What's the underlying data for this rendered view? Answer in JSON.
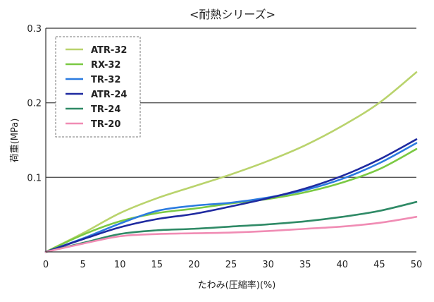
{
  "chart_data": {
    "type": "line",
    "title": "<耐熱シリーズ>",
    "xlabel": "たわみ(圧縮率)(%)",
    "ylabel": "荷重(MPa)",
    "xlim": [
      0,
      50
    ],
    "ylim": [
      0,
      0.3
    ],
    "xticks": [
      0,
      5,
      10,
      15,
      20,
      25,
      30,
      35,
      40,
      45,
      50
    ],
    "xtick_labels": [
      "0",
      "5",
      "10",
      "15",
      "20",
      "25",
      "30",
      "35",
      "40",
      "45",
      "50"
    ],
    "yticks": [
      0.1,
      0.2,
      0.3
    ],
    "ytick_labels": [
      "0.1",
      "0.2",
      "0.3"
    ],
    "grid": "horizontal",
    "legend_position": "top-left",
    "series": [
      {
        "name": "ATR-32",
        "color": "#b9d36c",
        "x": [
          0,
          5,
          10,
          15,
          20,
          25,
          30,
          35,
          40,
          45,
          50
        ],
        "y": [
          0,
          0.025,
          0.052,
          0.072,
          0.088,
          0.104,
          0.122,
          0.143,
          0.169,
          0.2,
          0.241
        ]
      },
      {
        "name": "RX-32",
        "color": "#7ac943",
        "x": [
          0,
          5,
          10,
          15,
          20,
          25,
          30,
          35,
          40,
          45,
          50
        ],
        "y": [
          0,
          0.023,
          0.041,
          0.052,
          0.058,
          0.065,
          0.071,
          0.08,
          0.093,
          0.111,
          0.138
        ]
      },
      {
        "name": "TR-32",
        "color": "#2b7be0",
        "x": [
          0,
          5,
          10,
          15,
          20,
          25,
          30,
          35,
          40,
          45,
          50
        ],
        "y": [
          0,
          0.018,
          0.038,
          0.055,
          0.062,
          0.066,
          0.073,
          0.083,
          0.098,
          0.119,
          0.146
        ]
      },
      {
        "name": "ATR-24",
        "color": "#1f2aa0",
        "x": [
          0,
          5,
          10,
          15,
          20,
          25,
          30,
          35,
          40,
          45,
          50
        ],
        "y": [
          0,
          0.017,
          0.033,
          0.044,
          0.051,
          0.061,
          0.072,
          0.085,
          0.102,
          0.124,
          0.151
        ]
      },
      {
        "name": "TR-24",
        "color": "#2f8a66",
        "x": [
          0,
          5,
          10,
          15,
          20,
          25,
          30,
          35,
          40,
          45,
          50
        ],
        "y": [
          0,
          0.012,
          0.024,
          0.029,
          0.031,
          0.034,
          0.037,
          0.041,
          0.047,
          0.055,
          0.067
        ]
      },
      {
        "name": "TR-20",
        "color": "#f08cb4",
        "x": [
          0,
          5,
          10,
          15,
          20,
          25,
          30,
          35,
          40,
          45,
          50
        ],
        "y": [
          0,
          0.011,
          0.021,
          0.024,
          0.025,
          0.026,
          0.028,
          0.031,
          0.034,
          0.039,
          0.047
        ]
      }
    ]
  }
}
